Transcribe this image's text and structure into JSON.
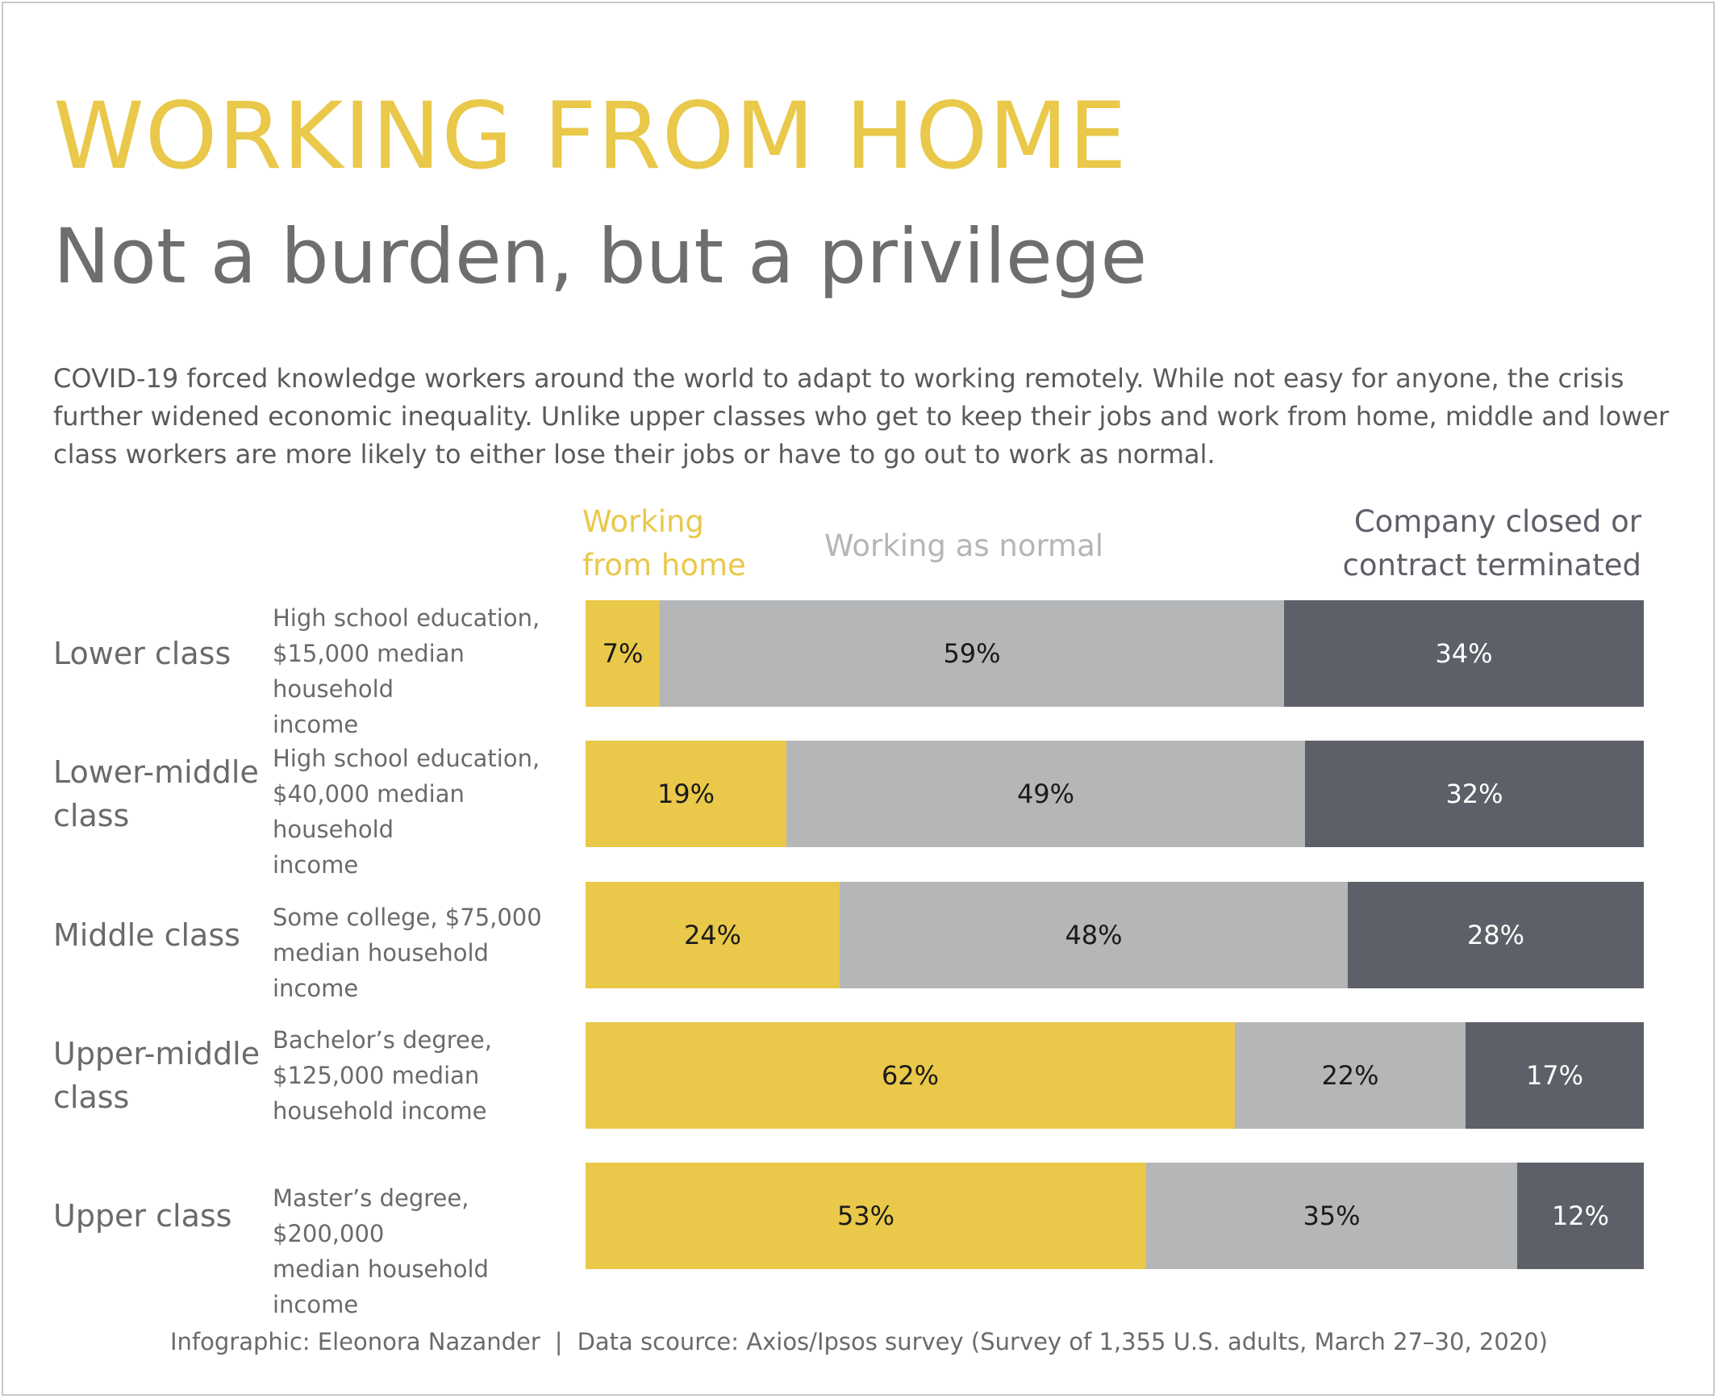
{
  "title": "WORKING FROM HOME",
  "subtitle": "Not a burden, but a privilege",
  "intro": "COVID-19 forced knowledge workers around the world to adapt to working remotely. While not easy for anyone, the crisis further widened economic inequality. Unlike upper classes who get to keep their jobs and work from home, middle and lower class workers are more likely to either lose their jobs or have to go out to work as normal.",
  "legend": {
    "wfh_line1": "Working",
    "wfh_line2": "from home",
    "normal": "Working as normal",
    "closed_line1": "Company closed or",
    "closed_line2": "contract terminated"
  },
  "colors": {
    "working_from_home": "#e9c84a",
    "working_as_normal": "#b4b6b8",
    "company_closed": "#5d6068"
  },
  "chart_data": {
    "type": "bar",
    "stacked": "100%",
    "orientation": "horizontal",
    "categories": [
      "Lower class",
      "Lower-middle class",
      "Middle class",
      "Upper-middle class",
      "Upper class"
    ],
    "category_lines": [
      [
        "Lower class"
      ],
      [
        "Lower-middle",
        "class"
      ],
      [
        "Middle class"
      ],
      [
        "Upper-middle",
        "class"
      ],
      [
        "Upper class"
      ]
    ],
    "descriptions": [
      [
        "High school education,",
        "$15,000 median household",
        "income"
      ],
      [
        "High school education,",
        "$40,000 median household",
        "income"
      ],
      [
        "Some college, $75,000",
        "median household income"
      ],
      [
        "Bachelor’s degree,",
        "$125,000 median",
        "household income"
      ],
      [
        "Master’s degree, $200,000",
        "median household income"
      ]
    ],
    "series": [
      {
        "name": "Working from home",
        "values": [
          7,
          19,
          24,
          62,
          53
        ],
        "labels": [
          "7%",
          "19%",
          "24%",
          "62%",
          "53%"
        ]
      },
      {
        "name": "Working as normal",
        "values": [
          59,
          49,
          48,
          22,
          35
        ],
        "labels": [
          "59%",
          "49%",
          "48%",
          "22%",
          "35%"
        ]
      },
      {
        "name": "Company closed or contract terminated",
        "values": [
          34,
          32,
          28,
          17,
          12
        ],
        "labels": [
          "34%",
          "32%",
          "28%",
          "17%",
          "12%"
        ]
      }
    ]
  },
  "footer": {
    "credit": "Infographic: Eleonora Nazander",
    "separator": "|",
    "source": "Data scource: Axios/Ipsos survey (Survey of 1,355 U.S. adults, March 27–30, 2020)"
  }
}
